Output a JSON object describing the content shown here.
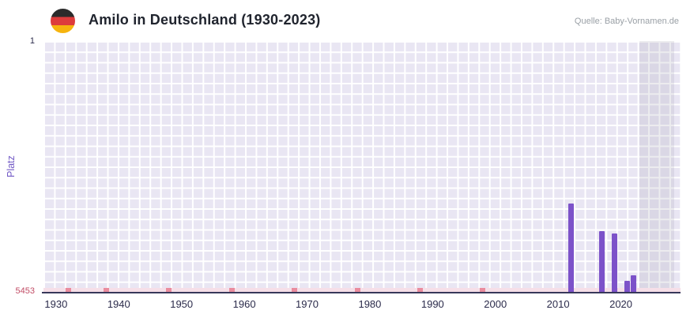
{
  "header": {
    "title": "Amilo in Deutschland (1930-2023)",
    "source": "Quelle: Baby-Vornamen.de",
    "flag_icon": "german-flag-icon",
    "flag_colors": [
      "#2b2b2b",
      "#dd3c3c",
      "#f6b40e"
    ]
  },
  "chart_data": {
    "type": "bar",
    "title": "Amilo in Deutschland (1930-2023)",
    "xlabel": "",
    "ylabel": "Platz",
    "plot_bg": "#e9e6f3",
    "grid_color": "#ffffff",
    "y_axis": {
      "min": 1,
      "max": 5453,
      "inverted": true,
      "top_label": "1",
      "bottom_label": "5453"
    },
    "x_axis": {
      "min": 1928,
      "max": 2029.5,
      "ticks": [
        1930,
        1940,
        1950,
        1960,
        1970,
        1980,
        1990,
        2000,
        2010,
        2020
      ]
    },
    "bars": {
      "color": "#7c52c9",
      "points": [
        {
          "year": 2012,
          "rank": 3534
        },
        {
          "year": 2017,
          "rank": 4133
        },
        {
          "year": 2019,
          "rank": 4184
        },
        {
          "year": 2021,
          "rank": 5213
        },
        {
          "year": 2022,
          "rank": 5093
        }
      ]
    },
    "baseline_markers": {
      "color": "#ea8c9e",
      "strip_color": "#f6dfe8",
      "rank": 5453,
      "years": [
        1932,
        1938,
        1948,
        1958,
        1968,
        1978,
        1988,
        1998
      ]
    },
    "no_data_band": {
      "from": 2023,
      "to": 2028.5,
      "color": "rgba(150,150,168,0.18)"
    },
    "legend": null,
    "grid": true
  }
}
